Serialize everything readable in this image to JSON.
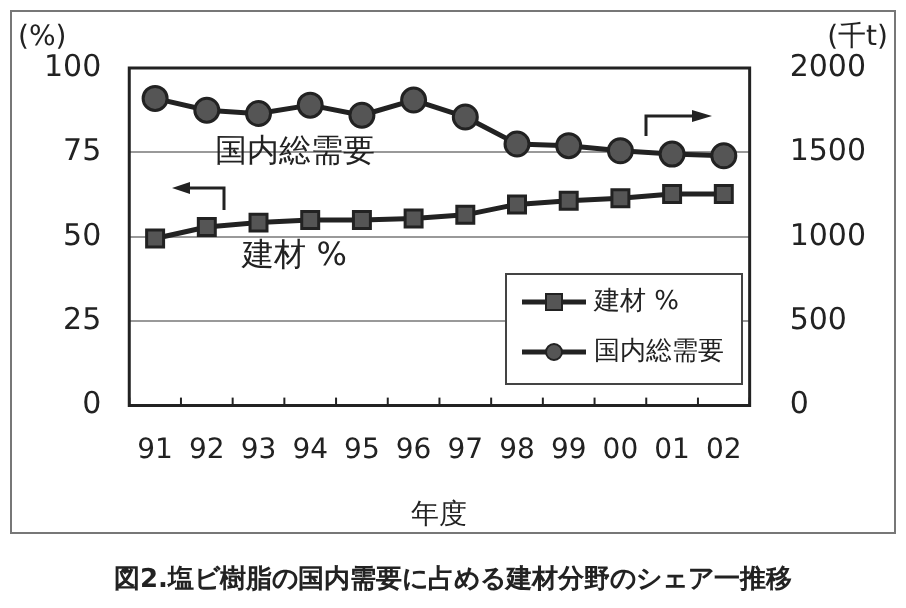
{
  "chart_data": {
    "type": "line",
    "title": "図2.塩ビ樹脂の国内需要に占める建材分野のシェア一推移",
    "xlabel": "年度",
    "ylabel": "(%)",
    "y2label": "(千t)",
    "categories": [
      "91",
      "92",
      "93",
      "94",
      "95",
      "96",
      "97",
      "98",
      "99",
      "00",
      "01",
      "02"
    ],
    "series": [
      {
        "name": "建材 %",
        "color": "#222222",
        "marker": "square",
        "values": [
          49.5,
          52.9,
          54.2,
          55,
          55,
          55.4,
          56.5,
          59.6,
          60.7,
          61.4,
          62.7,
          62.7
        ]
      },
      {
        "name": "国内総需要",
        "color": "#222222",
        "marker": "circle",
        "axis": "y2",
        "values": [
          1820,
          1750,
          1730,
          1780,
          1720,
          1810,
          1710,
          1550,
          1540,
          1510,
          1490,
          1480
        ]
      }
    ],
    "ylim": [
      0,
      100
    ],
    "yticks": [
      0,
      25,
      50,
      75,
      100
    ],
    "y2lim": [
      0,
      2000
    ],
    "y2ticks": [
      0,
      500,
      1000,
      1500,
      2000
    ],
    "grid": "y",
    "legend": "bottom right",
    "line_style": "solid",
    "annotations": [
      "国内総需要",
      "建材 %"
    ]
  }
}
